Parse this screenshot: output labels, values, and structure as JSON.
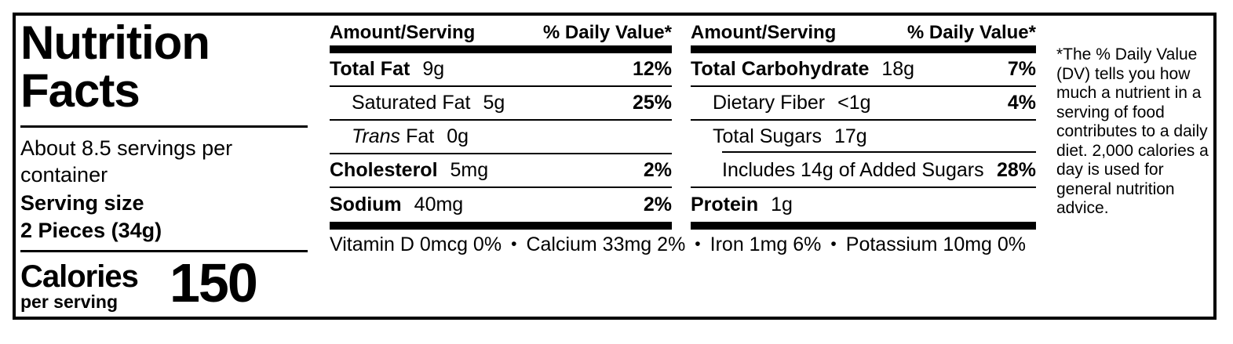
{
  "label": {
    "title": "Nutrition Facts",
    "servings_per_container": "About 8.5 servings per container",
    "serving_size_label": "Serving size",
    "serving_size_value": "2 Pieces (34g)",
    "calories_label": "Calories",
    "calories_sublabel": "per serving",
    "calories_value": "150"
  },
  "table": {
    "amount_header": "Amount/Serving",
    "dv_header": "% Daily Value*",
    "col1": [
      {
        "name": "Total Fat",
        "amount": "9g",
        "dv": "12%"
      },
      {
        "name": "Saturated Fat",
        "amount": "5g",
        "dv": "25%"
      },
      {
        "name_italic": "Trans",
        "name_rest": "Fat",
        "amount": "0g",
        "dv": ""
      },
      {
        "name": "Cholesterol",
        "amount": "5mg",
        "dv": "2%"
      },
      {
        "name": "Sodium",
        "amount": "40mg",
        "dv": "2%"
      }
    ],
    "col2": [
      {
        "name": "Total Carbohydrate",
        "amount": "18g",
        "dv": "7%"
      },
      {
        "name": "Dietary Fiber",
        "amount": "<1g",
        "dv": "4%"
      },
      {
        "name": "Total Sugars",
        "amount": "17g",
        "dv": ""
      },
      {
        "name": "Includes 14g of Added Sugars",
        "amount": "",
        "dv": "28%"
      },
      {
        "name": "Protein",
        "amount": "1g",
        "dv": ""
      }
    ]
  },
  "micronutrients": {
    "items": [
      "Vitamin D 0mcg 0%",
      "Calcium 33mg 2%",
      "Iron 1mg 6%",
      "Potassium 10mg 0%"
    ],
    "separator": "•"
  },
  "footnote": "*The % Daily Value (DV) tells you how much a nutrient in a serving of food contributes to a daily diet. 2,000 calories a day is used for general nutrition advice.",
  "colors": {
    "ink": "#000000",
    "background": "#ffffff"
  }
}
